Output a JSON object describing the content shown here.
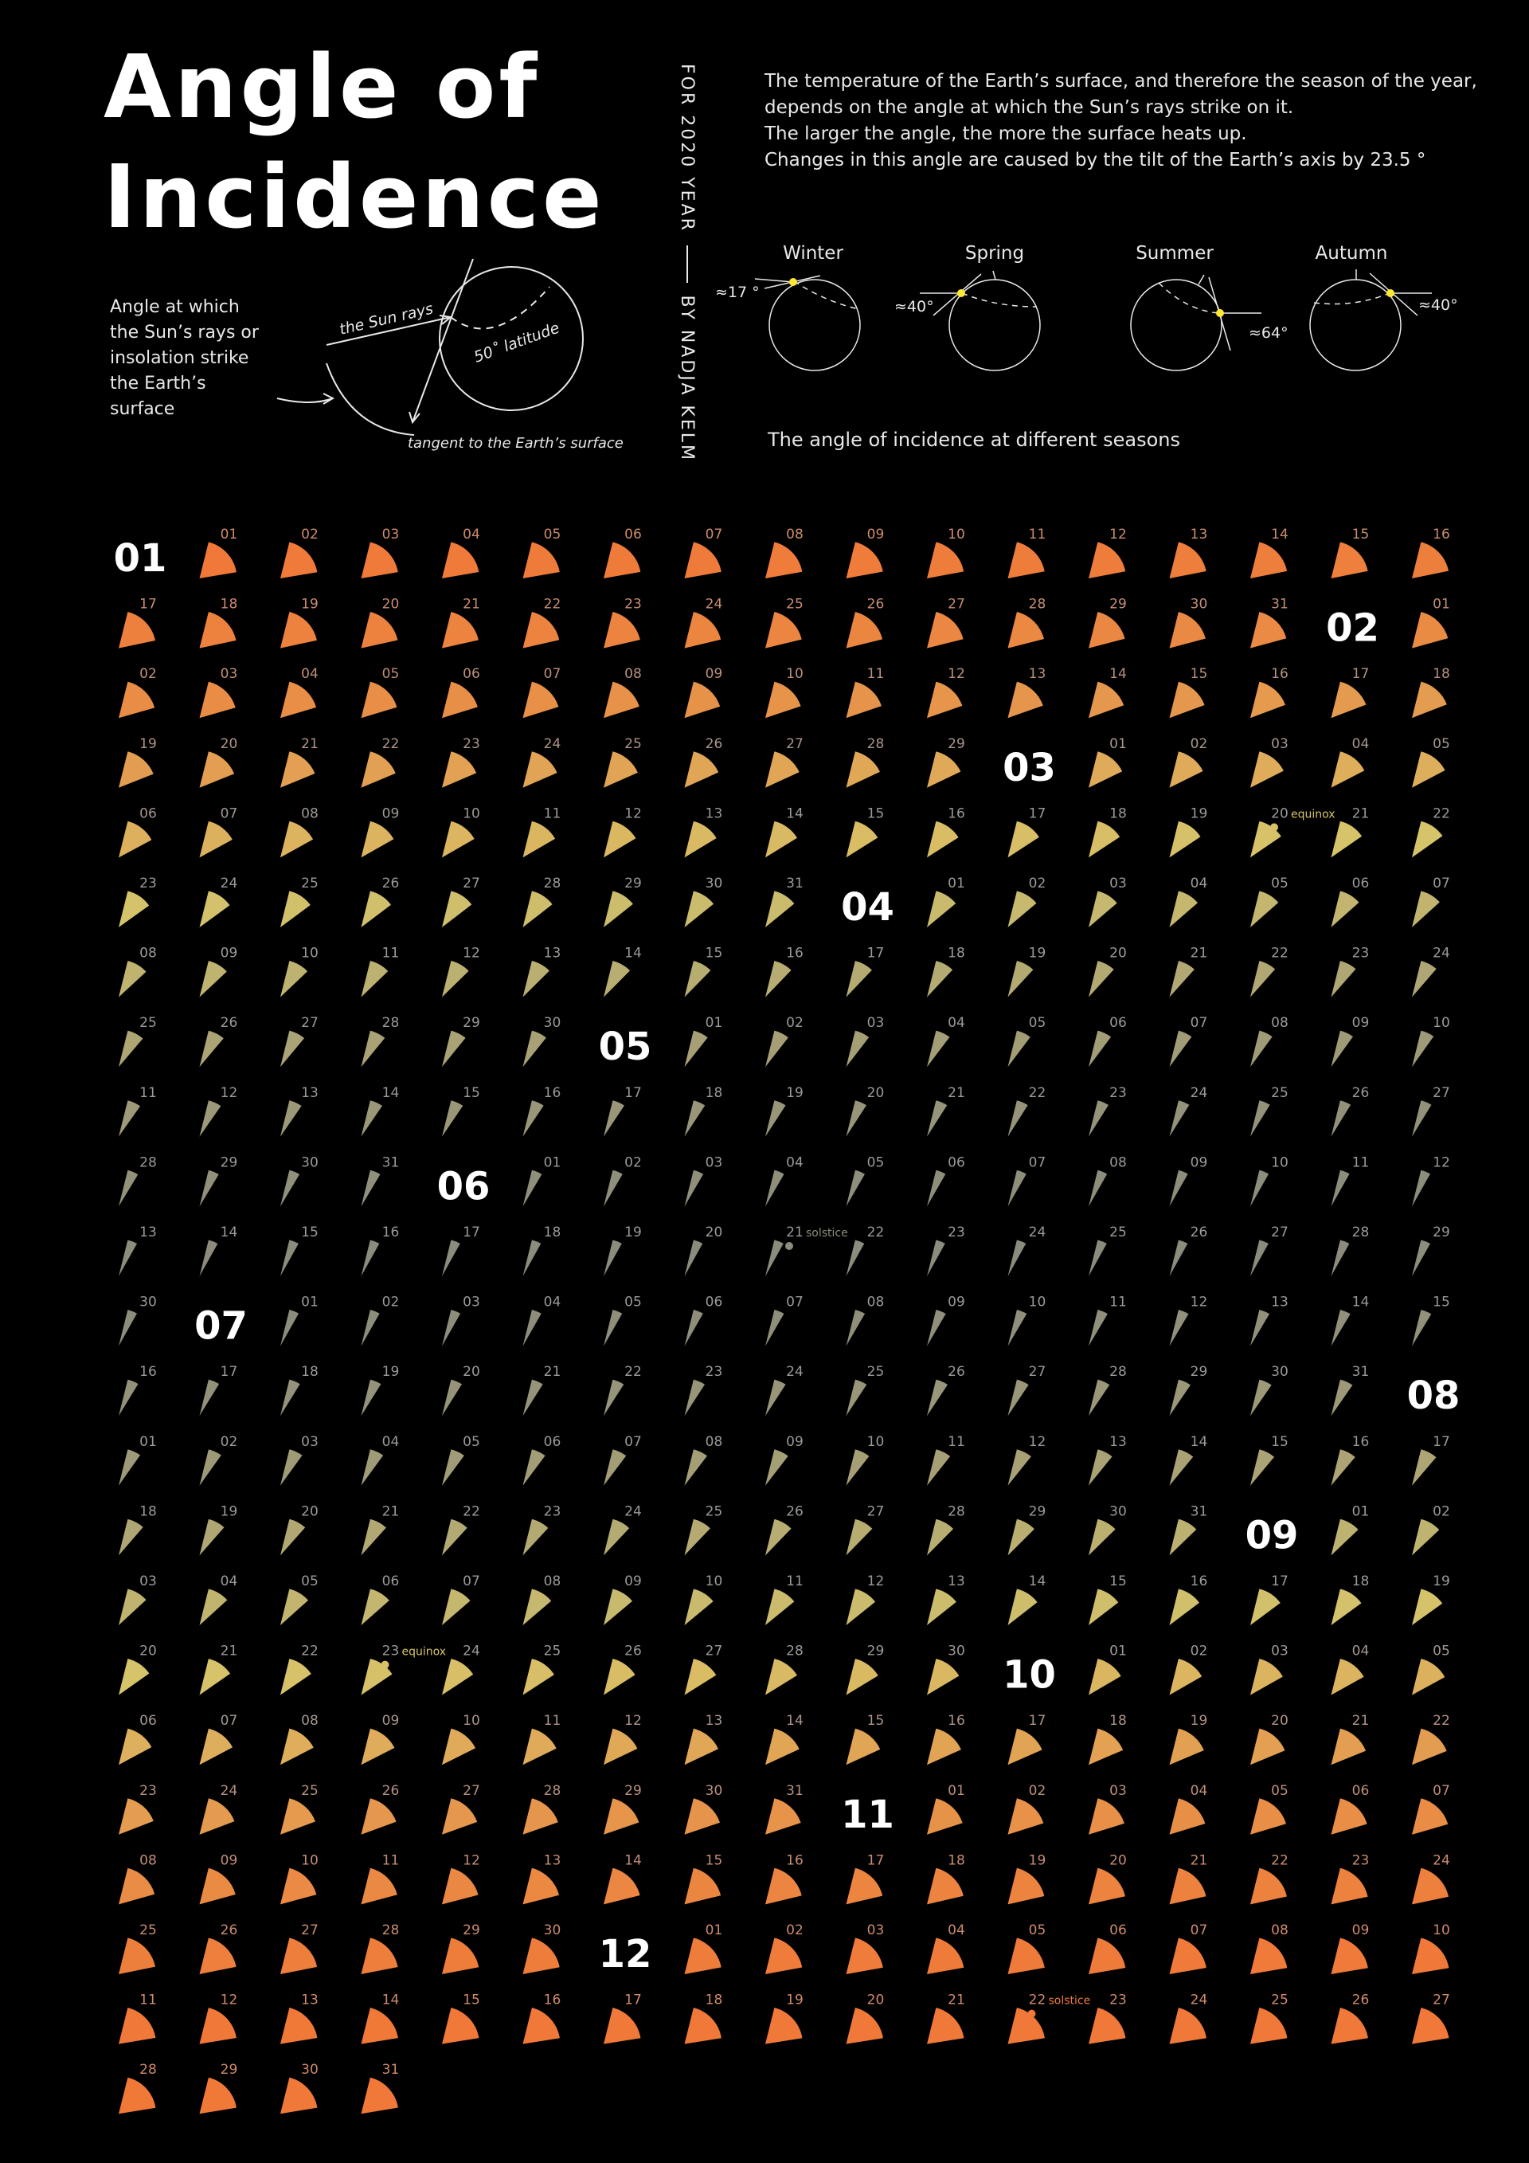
{
  "title_line1": "Angle of",
  "title_line2": "Incidence",
  "byline_year": "FOR 2020 YEAR",
  "byline_author": "BY NADJA KELM",
  "description": [
    "The temperature of the Earth’s surface, and therefore the season of the year,",
    "depends on the angle at which the Sun’s rays strike on it.",
    "The larger the angle, the more the surface heats up.",
    "Changes in this angle are caused by the tilt of the Earth’s axis by 23.5 °"
  ],
  "angle_note": "Angle at which the Sun’s rays or insolation strike the Earth’s surface",
  "diagram_labels": {
    "sun_rays": "the Sun rays",
    "latitude": "50˚ latitude",
    "tangent": "tangent to the Earth’s surface"
  },
  "seasons": [
    {
      "name": "Winter",
      "angle_label": "≈17 °"
    },
    {
      "name": "Spring",
      "angle_label": "≈40°"
    },
    {
      "name": "Summer",
      "angle_label": "≈64°"
    },
    {
      "name": "Autumn",
      "angle_label": "≈40°"
    }
  ],
  "seasons_caption": "The angle of incidence at different seasons",
  "year": 2020,
  "months": [
    "01",
    "02",
    "03",
    "04",
    "05",
    "06",
    "07",
    "08",
    "09",
    "10",
    "11",
    "12"
  ],
  "events": [
    {
      "month": 3,
      "day": 20,
      "label": "equinox"
    },
    {
      "month": 6,
      "day": 21,
      "label": "solstice"
    },
    {
      "month": 9,
      "day": 23,
      "label": "equinox"
    },
    {
      "month": 12,
      "day": 22,
      "label": "solstice"
    }
  ],
  "colors": {
    "background": "#000000",
    "text": "#ffffff",
    "day_label": "#9a9a9a",
    "winter": "#8c8c7c",
    "equinox": "#d6c46a",
    "summer": "#f07838",
    "sun_point": "#ffe830"
  }
}
